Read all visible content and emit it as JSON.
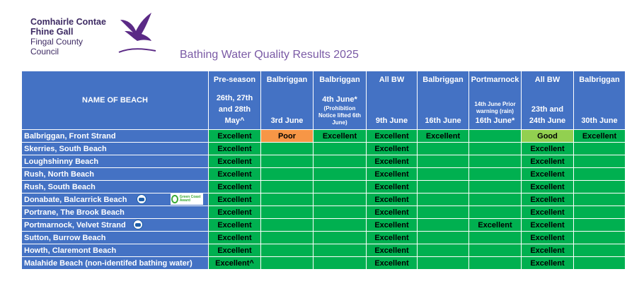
{
  "header": {
    "logo_line1": "Comhairle Contae",
    "logo_line2": "Fhine Gall",
    "logo_line3": "Fingal County",
    "logo_line4": "Council",
    "title": "Bathing Water Quality Results 2025"
  },
  "table": {
    "name_header": "NAME OF BEACH",
    "columns": [
      {
        "top": "Pre-season",
        "bottom": "26th, 27th and 28th May^"
      },
      {
        "top": "Balbriggan",
        "bottom": "3rd June"
      },
      {
        "top": "Balbriggan",
        "bottom": "4th June*",
        "note": "(Prohibition Notice lifted 6th June)"
      },
      {
        "top": "All BW",
        "bottom": "9th June"
      },
      {
        "top": "Balbriggan",
        "bottom": "16th June"
      },
      {
        "top": "Portmarnock",
        "note": "14th June Prior warning (rain)",
        "bottom": "16th June*"
      },
      {
        "top": "All BW",
        "bottom": "23th and 24th June"
      },
      {
        "top": "Balbriggan",
        "bottom": "30th June"
      }
    ],
    "rows": [
      {
        "name": "Balbriggan, Front Strand",
        "cells": [
          "Excellent",
          "Poor",
          "Excellent",
          "Excellent",
          "Excellent",
          "",
          "Good",
          "Excellent"
        ]
      },
      {
        "name": "Skerries, South Beach",
        "cells": [
          "Excellent",
          "",
          "",
          "Excellent",
          "",
          "",
          "Excellent",
          ""
        ]
      },
      {
        "name": "Loughshinny Beach",
        "cells": [
          "Excellent",
          "",
          "",
          "Excellent",
          "",
          "",
          "Excellent",
          ""
        ]
      },
      {
        "name": "Rush, North Beach",
        "cells": [
          "Excellent",
          "",
          "",
          "Excellent",
          "",
          "",
          "Excellent",
          ""
        ]
      },
      {
        "name": "Rush, South Beach",
        "cells": [
          "Excellent",
          "",
          "",
          "Excellent",
          "",
          "",
          "Excellent",
          ""
        ]
      },
      {
        "name": "Donabate, Balcarrick Beach",
        "cells": [
          "Excellent",
          "",
          "",
          "Excellent",
          "",
          "",
          "Excellent",
          ""
        ]
      },
      {
        "name": "Portrane, The Brook Beach",
        "cells": [
          "Excellent",
          "",
          "",
          "Excellent",
          "",
          "",
          "Excellent",
          ""
        ]
      },
      {
        "name": "Portmarnock, Velvet Strand",
        "cells": [
          "Excellent",
          "",
          "",
          "Excellent",
          "",
          "Excellent",
          "Excellent",
          ""
        ]
      },
      {
        "name": "Sutton, Burrow Beach",
        "cells": [
          "Excellent",
          "",
          "",
          "Excellent",
          "",
          "",
          "Excellent",
          ""
        ]
      },
      {
        "name": "Howth, Claremont Beach",
        "cells": [
          "Excellent",
          "",
          "",
          "Excellent",
          "",
          "",
          "Excellent",
          ""
        ]
      },
      {
        "name": "Malahide Beach (non-identifed bathing water)",
        "cells": [
          "Excellent^",
          "",
          "",
          "Excellent",
          "",
          "",
          "Excellent",
          ""
        ]
      }
    ],
    "badges": {
      "blue_flag_icon": "blue-flag-icon",
      "green_coast_icon": "green-coast-award-icon",
      "green_coast_text": "Green Coast Award"
    }
  },
  "colors": {
    "header_blue": "#4472c4",
    "excellent": "#00b050",
    "good": "#92d050",
    "poor": "#f79646",
    "title": "#7a5aa5"
  }
}
